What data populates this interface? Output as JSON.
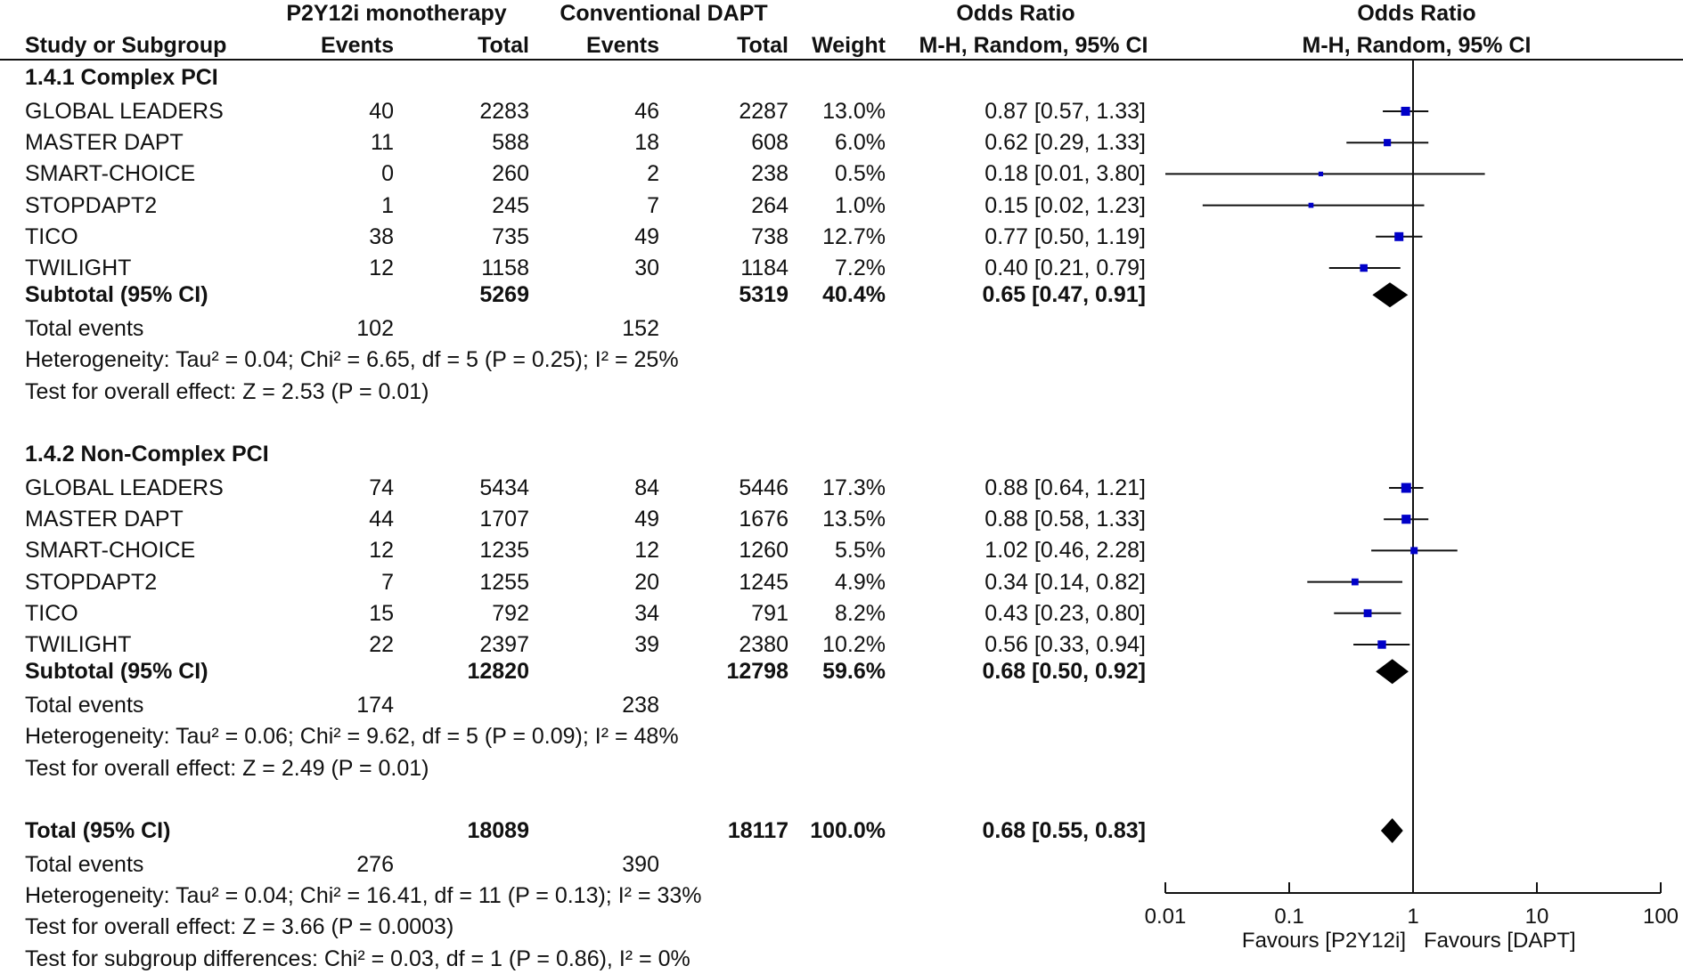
{
  "header": {
    "group1": "P2Y12i monotherapy",
    "group2": "Conventional DAPT",
    "or_title": "Odds Ratio",
    "plot_title": "Odds Ratio",
    "col_study": "Study or Subgroup",
    "col_events1": "Events",
    "col_total1": "Total",
    "col_events2": "Events",
    "col_total2": "Total",
    "col_weight": "Weight",
    "col_method": "M-H, Random, 95% CI",
    "plot_method": "M-H, Random, 95% CI"
  },
  "subgroups": [
    {
      "title": "1.4.1 Complex PCI",
      "studies": [
        {
          "name": "GLOBAL LEADERS",
          "e1": "40",
          "t1": "2283",
          "e2": "46",
          "t2": "2287",
          "weight": "13.0%",
          "ci_text": "0.87 [0.57, 1.33]"
        },
        {
          "name": "MASTER DAPT",
          "e1": "11",
          "t1": "588",
          "e2": "18",
          "t2": "608",
          "weight": "6.0%",
          "ci_text": "0.62 [0.29, 1.33]"
        },
        {
          "name": "SMART-CHOICE",
          "e1": "0",
          "t1": "260",
          "e2": "2",
          "t2": "238",
          "weight": "0.5%",
          "ci_text": "0.18 [0.01, 3.80]"
        },
        {
          "name": "STOPDAPT2",
          "e1": "1",
          "t1": "245",
          "e2": "7",
          "t2": "264",
          "weight": "1.0%",
          "ci_text": "0.15 [0.02, 1.23]"
        },
        {
          "name": "TICO",
          "e1": "38",
          "t1": "735",
          "e2": "49",
          "t2": "738",
          "weight": "12.7%",
          "ci_text": "0.77 [0.50, 1.19]"
        },
        {
          "name": "TWILIGHT",
          "e1": "12",
          "t1": "1158",
          "e2": "30",
          "t2": "1184",
          "weight": "7.2%",
          "ci_text": "0.40 [0.21, 0.79]"
        }
      ],
      "subtotal": {
        "label": "Subtotal (95% CI)",
        "t1": "5269",
        "t2": "5319",
        "weight": "40.4%",
        "ci_text": "0.65 [0.47, 0.91]"
      },
      "events": {
        "label": "Total events",
        "e1": "102",
        "e2": "152"
      },
      "heterogeneity": "Heterogeneity: Tau² = 0.04; Chi² = 6.65, df = 5 (P = 0.25); I² = 25%",
      "overall": "Test for overall effect: Z = 2.53 (P = 0.01)"
    },
    {
      "title": "1.4.2 Non-Complex PCI",
      "studies": [
        {
          "name": "GLOBAL LEADERS",
          "e1": "74",
          "t1": "5434",
          "e2": "84",
          "t2": "5446",
          "weight": "17.3%",
          "ci_text": "0.88 [0.64, 1.21]"
        },
        {
          "name": "MASTER DAPT",
          "e1": "44",
          "t1": "1707",
          "e2": "49",
          "t2": "1676",
          "weight": "13.5%",
          "ci_text": "0.88 [0.58, 1.33]"
        },
        {
          "name": "SMART-CHOICE",
          "e1": "12",
          "t1": "1235",
          "e2": "12",
          "t2": "1260",
          "weight": "5.5%",
          "ci_text": "1.02 [0.46, 2.28]"
        },
        {
          "name": "STOPDAPT2",
          "e1": "7",
          "t1": "1255",
          "e2": "20",
          "t2": "1245",
          "weight": "4.9%",
          "ci_text": "0.34 [0.14, 0.82]"
        },
        {
          "name": "TICO",
          "e1": "15",
          "t1": "792",
          "e2": "34",
          "t2": "791",
          "weight": "8.2%",
          "ci_text": "0.43 [0.23, 0.80]"
        },
        {
          "name": "TWILIGHT",
          "e1": "22",
          "t1": "2397",
          "e2": "39",
          "t2": "2380",
          "weight": "10.2%",
          "ci_text": "0.56 [0.33, 0.94]"
        }
      ],
      "subtotal": {
        "label": "Subtotal (95% CI)",
        "t1": "12820",
        "t2": "12798",
        "weight": "59.6%",
        "ci_text": "0.68 [0.50, 0.92]"
      },
      "events": {
        "label": "Total events",
        "e1": "174",
        "e2": "238"
      },
      "heterogeneity": "Heterogeneity: Tau² = 0.06; Chi² = 9.62, df = 5 (P = 0.09); I² = 48%",
      "overall": "Test for overall effect: Z = 2.49 (P = 0.01)"
    }
  ],
  "total": {
    "label": "Total (95% CI)",
    "t1": "18089",
    "t2": "18117",
    "weight": "100.0%",
    "ci_text": "0.68 [0.55, 0.83]",
    "events": {
      "label": "Total events",
      "e1": "276",
      "e2": "390"
    },
    "heterogeneity": "Heterogeneity: Tau² = 0.04; Chi² = 16.41, df = 11 (P = 0.13); I² = 33%",
    "overall": "Test for overall effect: Z = 3.66 (P = 0.0003)",
    "subgroup_diff": "Test for subgroup differences: Chi² = 0.03, df = 1 (P = 0.86), I² = 0%"
  },
  "axis": {
    "ticks": [
      "0.01",
      "0.1",
      "1",
      "10",
      "100"
    ],
    "favours_left": "Favours [P2Y12i]",
    "favours_right": "Favours [DAPT]"
  },
  "chart_data": {
    "type": "forest",
    "xscale": "log",
    "xlim": [
      0.01,
      100
    ],
    "reference_line": 1,
    "marker_color": "#0000c8",
    "series": [
      {
        "name": "1.4.1 Complex PCI",
        "studies": [
          {
            "label": "GLOBAL LEADERS",
            "or": 0.87,
            "lo": 0.57,
            "hi": 1.33,
            "weight": 13.0
          },
          {
            "label": "MASTER DAPT",
            "or": 0.62,
            "lo": 0.29,
            "hi": 1.33,
            "weight": 6.0
          },
          {
            "label": "SMART-CHOICE",
            "or": 0.18,
            "lo": 0.01,
            "hi": 3.8,
            "weight": 0.5
          },
          {
            "label": "STOPDAPT2",
            "or": 0.15,
            "lo": 0.02,
            "hi": 1.23,
            "weight": 1.0
          },
          {
            "label": "TICO",
            "or": 0.77,
            "lo": 0.5,
            "hi": 1.19,
            "weight": 12.7
          },
          {
            "label": "TWILIGHT",
            "or": 0.4,
            "lo": 0.21,
            "hi": 0.79,
            "weight": 7.2
          }
        ],
        "pooled": {
          "or": 0.65,
          "lo": 0.47,
          "hi": 0.91
        }
      },
      {
        "name": "1.4.2 Non-Complex PCI",
        "studies": [
          {
            "label": "GLOBAL LEADERS",
            "or": 0.88,
            "lo": 0.64,
            "hi": 1.21,
            "weight": 17.3
          },
          {
            "label": "MASTER DAPT",
            "or": 0.88,
            "lo": 0.58,
            "hi": 1.33,
            "weight": 13.5
          },
          {
            "label": "SMART-CHOICE",
            "or": 1.02,
            "lo": 0.46,
            "hi": 2.28,
            "weight": 5.5
          },
          {
            "label": "STOPDAPT2",
            "or": 0.34,
            "lo": 0.14,
            "hi": 0.82,
            "weight": 4.9
          },
          {
            "label": "TICO",
            "or": 0.43,
            "lo": 0.23,
            "hi": 0.8,
            "weight": 8.2
          },
          {
            "label": "TWILIGHT",
            "or": 0.56,
            "lo": 0.33,
            "hi": 0.94,
            "weight": 10.2
          }
        ],
        "pooled": {
          "or": 0.68,
          "lo": 0.5,
          "hi": 0.92
        }
      }
    ],
    "overall": {
      "or": 0.68,
      "lo": 0.55,
      "hi": 0.83
    }
  }
}
